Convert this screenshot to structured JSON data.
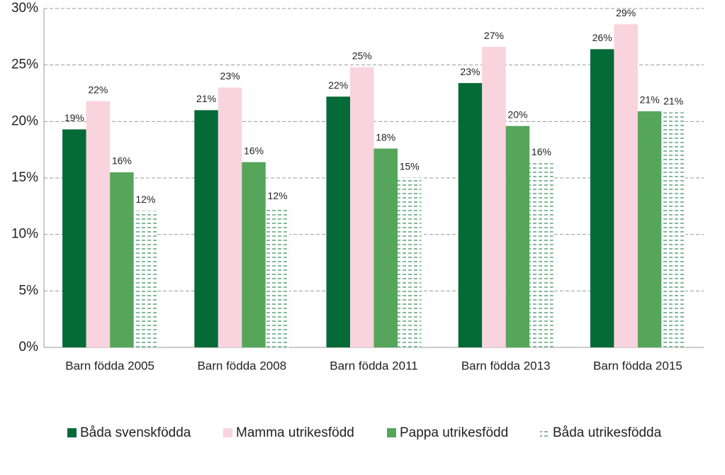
{
  "chart_data": {
    "type": "bar",
    "categories": [
      "Barn födda 2005",
      "Barn födda 2008",
      "Barn födda 2011",
      "Barn födda 2013",
      "Barn födda 2015"
    ],
    "series": [
      {
        "name": "Båda svenskfödda",
        "color": "#046a38",
        "values": [
          19.3,
          21.0,
          22.2,
          23.4,
          26.4
        ],
        "value_labels": [
          "19%",
          "21%",
          "22%",
          "23%",
          "26%"
        ]
      },
      {
        "name": "Mamma utrikesfödd",
        "color": "#f9d3de",
        "values": [
          21.8,
          23.0,
          24.8,
          26.6,
          28.6
        ],
        "value_labels": [
          "22%",
          "23%",
          "25%",
          "27%",
          "29%"
        ]
      },
      {
        "name": "Pappa utrikesfödd",
        "color": "#55a65a",
        "values": [
          15.5,
          16.4,
          17.6,
          19.6,
          20.9
        ],
        "value_labels": [
          "16%",
          "16%",
          "18%",
          "20%",
          "21%"
        ]
      },
      {
        "name": "Båda utrikesfödda",
        "color": "#2e8b57",
        "pattern": "dashes",
        "values": [
          12.1,
          12.4,
          15.0,
          16.3,
          20.8
        ],
        "value_labels": [
          "12%",
          "12%",
          "15%",
          "16%",
          "21%"
        ]
      }
    ],
    "ylim": [
      0,
      30
    ],
    "yticks": [
      {
        "value": 0,
        "label": "0%"
      },
      {
        "value": 5,
        "label": "5%"
      },
      {
        "value": 10,
        "label": "10%"
      },
      {
        "value": 15,
        "label": "15%"
      },
      {
        "value": 20,
        "label": "20%"
      },
      {
        "value": 25,
        "label": "25%"
      },
      {
        "value": 30,
        "label": "30%"
      }
    ],
    "grid": true,
    "legend": "bottom"
  }
}
